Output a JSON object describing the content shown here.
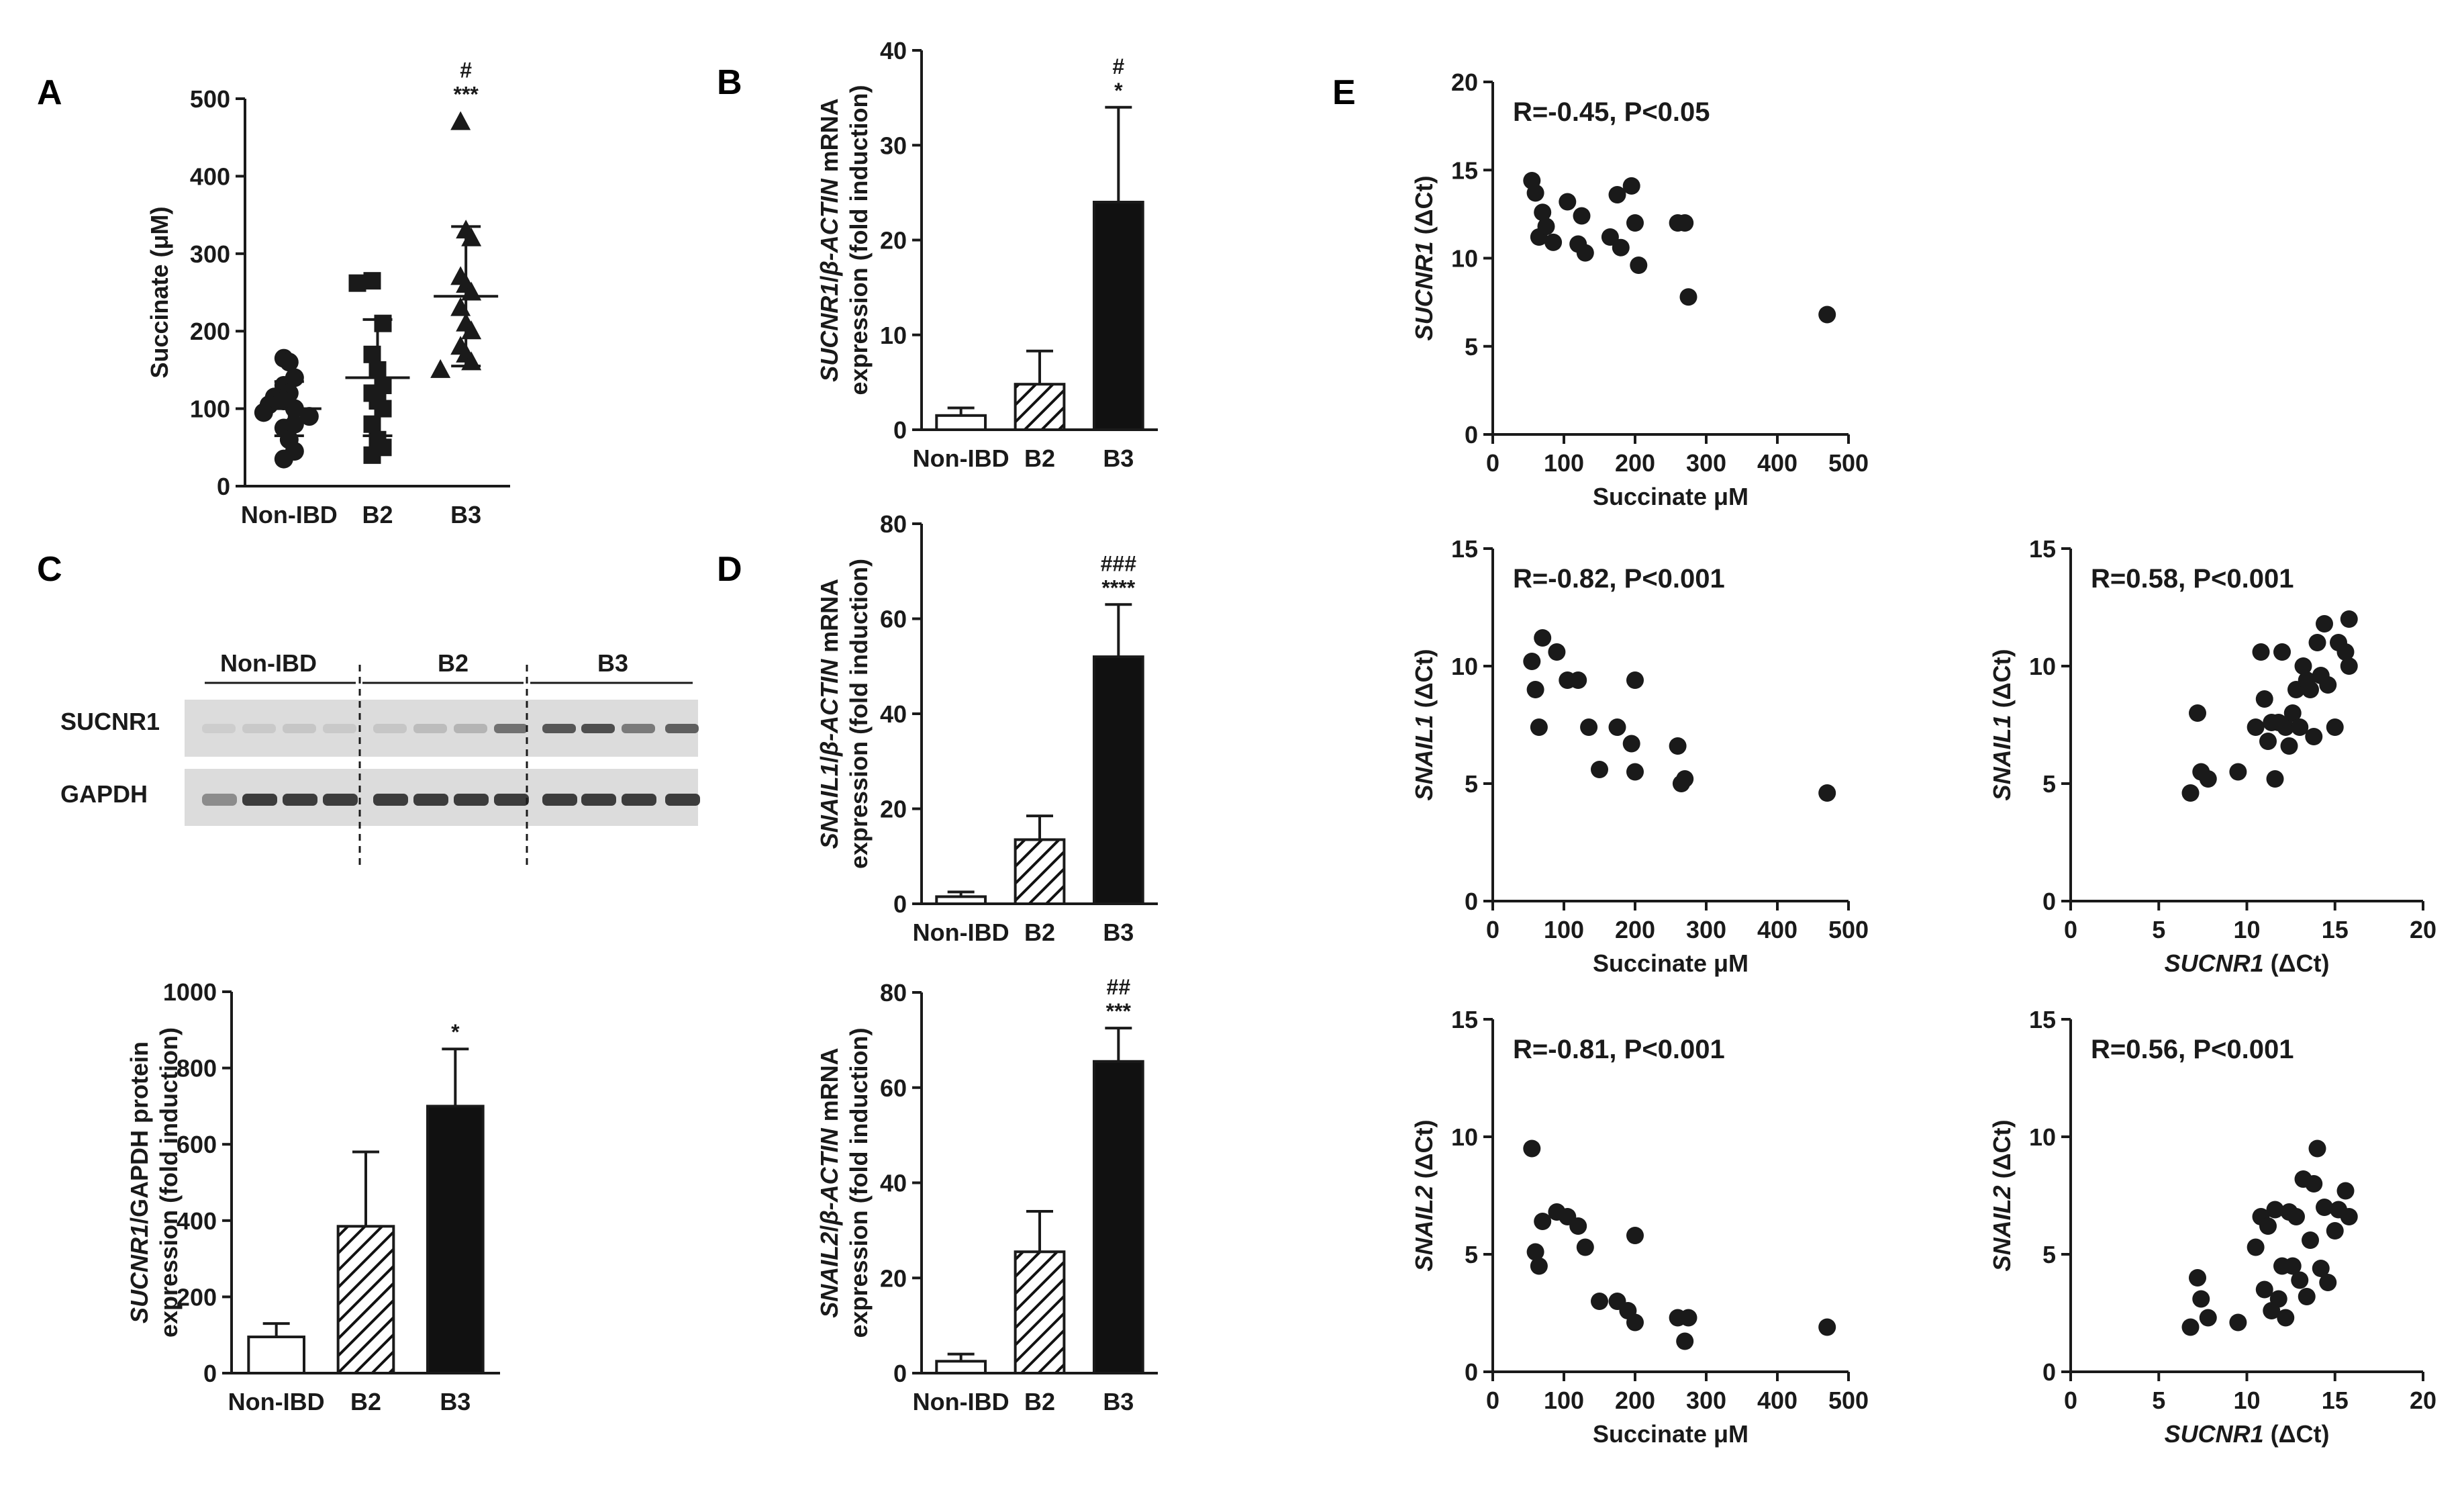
{
  "figure": {
    "panel_letters": [
      "A",
      "B",
      "C",
      "D",
      "E"
    ]
  },
  "colors": {
    "ink": "#1a1a1a",
    "bar_black": "#111111",
    "bar_white": "#ffffff",
    "blot_bg": "#dcdcdc",
    "band": "#2a2a2a"
  },
  "blot": {
    "groups": [
      "Non-IBD",
      "B2",
      "B3"
    ],
    "rows": [
      "SUCNR1",
      "GAPDH"
    ]
  },
  "chart_data": [
    {
      "id": "A",
      "type": "scatter",
      "ylabel": "Succinate (μM)",
      "ylim": [
        0,
        500
      ],
      "yticks": [
        0,
        100,
        200,
        300,
        400,
        500
      ],
      "categories": [
        "Non-IBD",
        "B2",
        "B3"
      ],
      "markers": [
        "circle",
        "square",
        "triangle"
      ],
      "series": [
        {
          "name": "Non-IBD",
          "values": [
            165,
            160,
            140,
            130,
            120,
            115,
            110,
            105,
            100,
            95,
            90,
            80,
            75,
            60,
            45,
            35
          ],
          "mean": 100,
          "sd": 35
        },
        {
          "name": "B2",
          "values": [
            265,
            262,
            210,
            170,
            150,
            130,
            120,
            110,
            100,
            80,
            60,
            50,
            40
          ],
          "mean": 140,
          "sd": 75
        },
        {
          "name": "B3",
          "values": [
            470,
            330,
            320,
            270,
            260,
            250,
            230,
            210,
            200,
            180,
            170,
            160,
            150
          ],
          "mean": 245,
          "sd": 90
        }
      ],
      "significance": {
        "B3": [
          "#",
          "***"
        ]
      }
    },
    {
      "id": "B",
      "type": "bar",
      "ylabel": "SUCNR1/β-ACTIN mRNA",
      "ylabel2": "expression (fold induction)",
      "ylim": [
        0,
        40
      ],
      "yticks": [
        0,
        10,
        20,
        30,
        40
      ],
      "categories": [
        "Non-IBD",
        "B2",
        "B3"
      ],
      "values": [
        1.5,
        4.8,
        24
      ],
      "errors": [
        0.8,
        3.5,
        10
      ],
      "fills": [
        "white",
        "hatched",
        "black"
      ],
      "significance": {
        "B3": [
          "#",
          "*"
        ]
      }
    },
    {
      "id": "C",
      "type": "bar",
      "ylabel": "SUCNR1/GAPDH protein",
      "ylabel2": "expression (fold induction)",
      "ylim": [
        0,
        1000
      ],
      "yticks": [
        0,
        200,
        400,
        600,
        800,
        1000
      ],
      "categories": [
        "Non-IBD",
        "B2",
        "B3"
      ],
      "values": [
        95,
        385,
        700
      ],
      "errors": [
        35,
        195,
        150
      ],
      "fills": [
        "white",
        "hatched",
        "black"
      ],
      "significance": {
        "B3": [
          "*"
        ]
      }
    },
    {
      "id": "D1",
      "type": "bar",
      "ylabel": "SNAIL1/β-ACTIN mRNA",
      "ylabel2": "expression (fold induction)",
      "ylim": [
        0,
        80
      ],
      "yticks": [
        0,
        20,
        40,
        60,
        80
      ],
      "categories": [
        "Non-IBD",
        "B2",
        "B3"
      ],
      "values": [
        1.5,
        13.5,
        52
      ],
      "errors": [
        1,
        5,
        11
      ],
      "fills": [
        "white",
        "hatched",
        "black"
      ],
      "significance": {
        "B3": [
          "###",
          "****"
        ]
      }
    },
    {
      "id": "D2",
      "type": "bar",
      "ylabel": "SNAIL2/β-ACTIN mRNA",
      "ylabel2": "expression (fold induction)",
      "ylim": [
        0,
        80
      ],
      "yticks": [
        0,
        20,
        40,
        60,
        80
      ],
      "categories": [
        "Non-IBD",
        "B2",
        "B3"
      ],
      "values": [
        2.5,
        25.5,
        65.5
      ],
      "errors": [
        1.5,
        8.5,
        7
      ],
      "fills": [
        "white",
        "hatched",
        "black"
      ],
      "significance": {
        "B3": [
          "##",
          "***"
        ]
      }
    },
    {
      "id": "E1",
      "type": "scatter",
      "annotation": "R=-0.45, P<0.05",
      "xlabel": "Succinate μM",
      "ylabel": "SUCNR1 (ΔCt)",
      "xlim": [
        0,
        500
      ],
      "ylim": [
        0,
        20
      ],
      "xticks": [
        0,
        100,
        200,
        300,
        400,
        500
      ],
      "yticks": [
        0,
        5,
        10,
        15,
        20
      ],
      "x": [
        55,
        60,
        65,
        70,
        75,
        85,
        105,
        120,
        125,
        130,
        165,
        175,
        180,
        195,
        200,
        205,
        260,
        270,
        275,
        470
      ],
      "y": [
        14.4,
        13.7,
        11.2,
        12.6,
        11.8,
        10.9,
        13.2,
        10.8,
        12.4,
        10.3,
        11.2,
        13.6,
        10.6,
        14.1,
        12.0,
        9.6,
        12.0,
        12.0,
        7.8,
        6.8
      ]
    },
    {
      "id": "E2",
      "type": "scatter",
      "annotation": "R=-0.82, P<0.001",
      "xlabel": "Succinate μM",
      "ylabel": "SNAIL1 (ΔCt)",
      "xlim": [
        0,
        500
      ],
      "ylim": [
        0,
        15
      ],
      "xticks": [
        0,
        100,
        200,
        300,
        400,
        500
      ],
      "yticks": [
        0,
        5,
        10,
        15
      ],
      "x": [
        55,
        60,
        65,
        70,
        90,
        105,
        120,
        135,
        150,
        175,
        195,
        200,
        200,
        260,
        265,
        270,
        470
      ],
      "y": [
        10.2,
        9.0,
        7.4,
        11.2,
        10.6,
        9.4,
        9.4,
        7.4,
        5.6,
        7.4,
        6.7,
        9.4,
        5.5,
        6.6,
        5.0,
        5.2,
        4.6
      ]
    },
    {
      "id": "E3",
      "type": "scatter",
      "annotation": "R=0.58, P<0.001",
      "xlabel": "SUCNR1 (ΔCt)",
      "ylabel": "SNAIL1 (ΔCt)",
      "xlim": [
        0,
        20
      ],
      "ylim": [
        0,
        15
      ],
      "xticks": [
        0,
        5,
        10,
        15,
        20
      ],
      "yticks": [
        0,
        5,
        10,
        15
      ],
      "x": [
        6.8,
        7.2,
        7.4,
        7.8,
        9.5,
        10.5,
        10.8,
        11.0,
        11.2,
        11.4,
        11.6,
        11.8,
        12.0,
        12.2,
        12.4,
        12.6,
        12.8,
        13.0,
        13.2,
        13.4,
        13.6,
        13.8,
        14.0,
        14.2,
        14.4,
        14.6,
        15.0,
        15.2,
        15.6,
        15.8,
        15.8
      ],
      "y": [
        4.6,
        8.0,
        5.5,
        5.2,
        5.5,
        7.4,
        10.6,
        8.6,
        6.8,
        7.6,
        5.2,
        7.6,
        10.6,
        7.4,
        6.6,
        8.0,
        9.0,
        7.4,
        10.0,
        9.4,
        9.0,
        7.0,
        11.0,
        9.6,
        11.8,
        9.2,
        7.4,
        11.0,
        10.6,
        12.0,
        10.0
      ]
    },
    {
      "id": "E4",
      "type": "scatter",
      "annotation": "R=-0.81, P<0.001",
      "xlabel": "Succinate μM",
      "ylabel": "SNAIL2 (ΔCt)",
      "xlim": [
        0,
        500
      ],
      "ylim": [
        0,
        15
      ],
      "xticks": [
        0,
        100,
        200,
        300,
        400,
        500
      ],
      "yticks": [
        0,
        5,
        10,
        15
      ],
      "x": [
        55,
        60,
        65,
        70,
        90,
        105,
        120,
        130,
        150,
        175,
        190,
        200,
        200,
        260,
        270,
        275,
        470
      ],
      "y": [
        9.5,
        5.1,
        4.5,
        6.4,
        6.8,
        6.6,
        6.2,
        5.3,
        3.0,
        3.0,
        2.6,
        5.8,
        2.1,
        2.3,
        1.3,
        2.3,
        1.9
      ],
      "_n": 17
    },
    {
      "id": "E5",
      "type": "scatter",
      "annotation": "R=0.56, P<0.001",
      "xlabel": "SUCNR1 (ΔCt)",
      "ylabel": "SNAIL2 (ΔCt)",
      "xlim": [
        0,
        20
      ],
      "ylim": [
        0,
        15
      ],
      "xticks": [
        0,
        5,
        10,
        15,
        20
      ],
      "yticks": [
        0,
        5,
        10,
        15
      ],
      "x": [
        6.8,
        7.2,
        7.4,
        7.8,
        9.5,
        10.5,
        10.8,
        11.0,
        11.2,
        11.4,
        11.6,
        11.8,
        12.0,
        12.2,
        12.4,
        12.6,
        12.8,
        13.0,
        13.2,
        13.4,
        13.6,
        13.8,
        14.0,
        14.2,
        14.4,
        14.6,
        15.0,
        15.2,
        15.6,
        15.8
      ],
      "y": [
        1.9,
        4.0,
        3.1,
        2.3,
        2.1,
        5.3,
        6.6,
        3.5,
        6.2,
        2.6,
        6.9,
        3.1,
        4.5,
        2.3,
        6.8,
        4.5,
        6.6,
        3.9,
        8.2,
        3.2,
        5.6,
        8.0,
        9.5,
        4.4,
        7.0,
        3.8,
        6.0,
        6.9,
        7.7,
        6.6
      ]
    }
  ]
}
